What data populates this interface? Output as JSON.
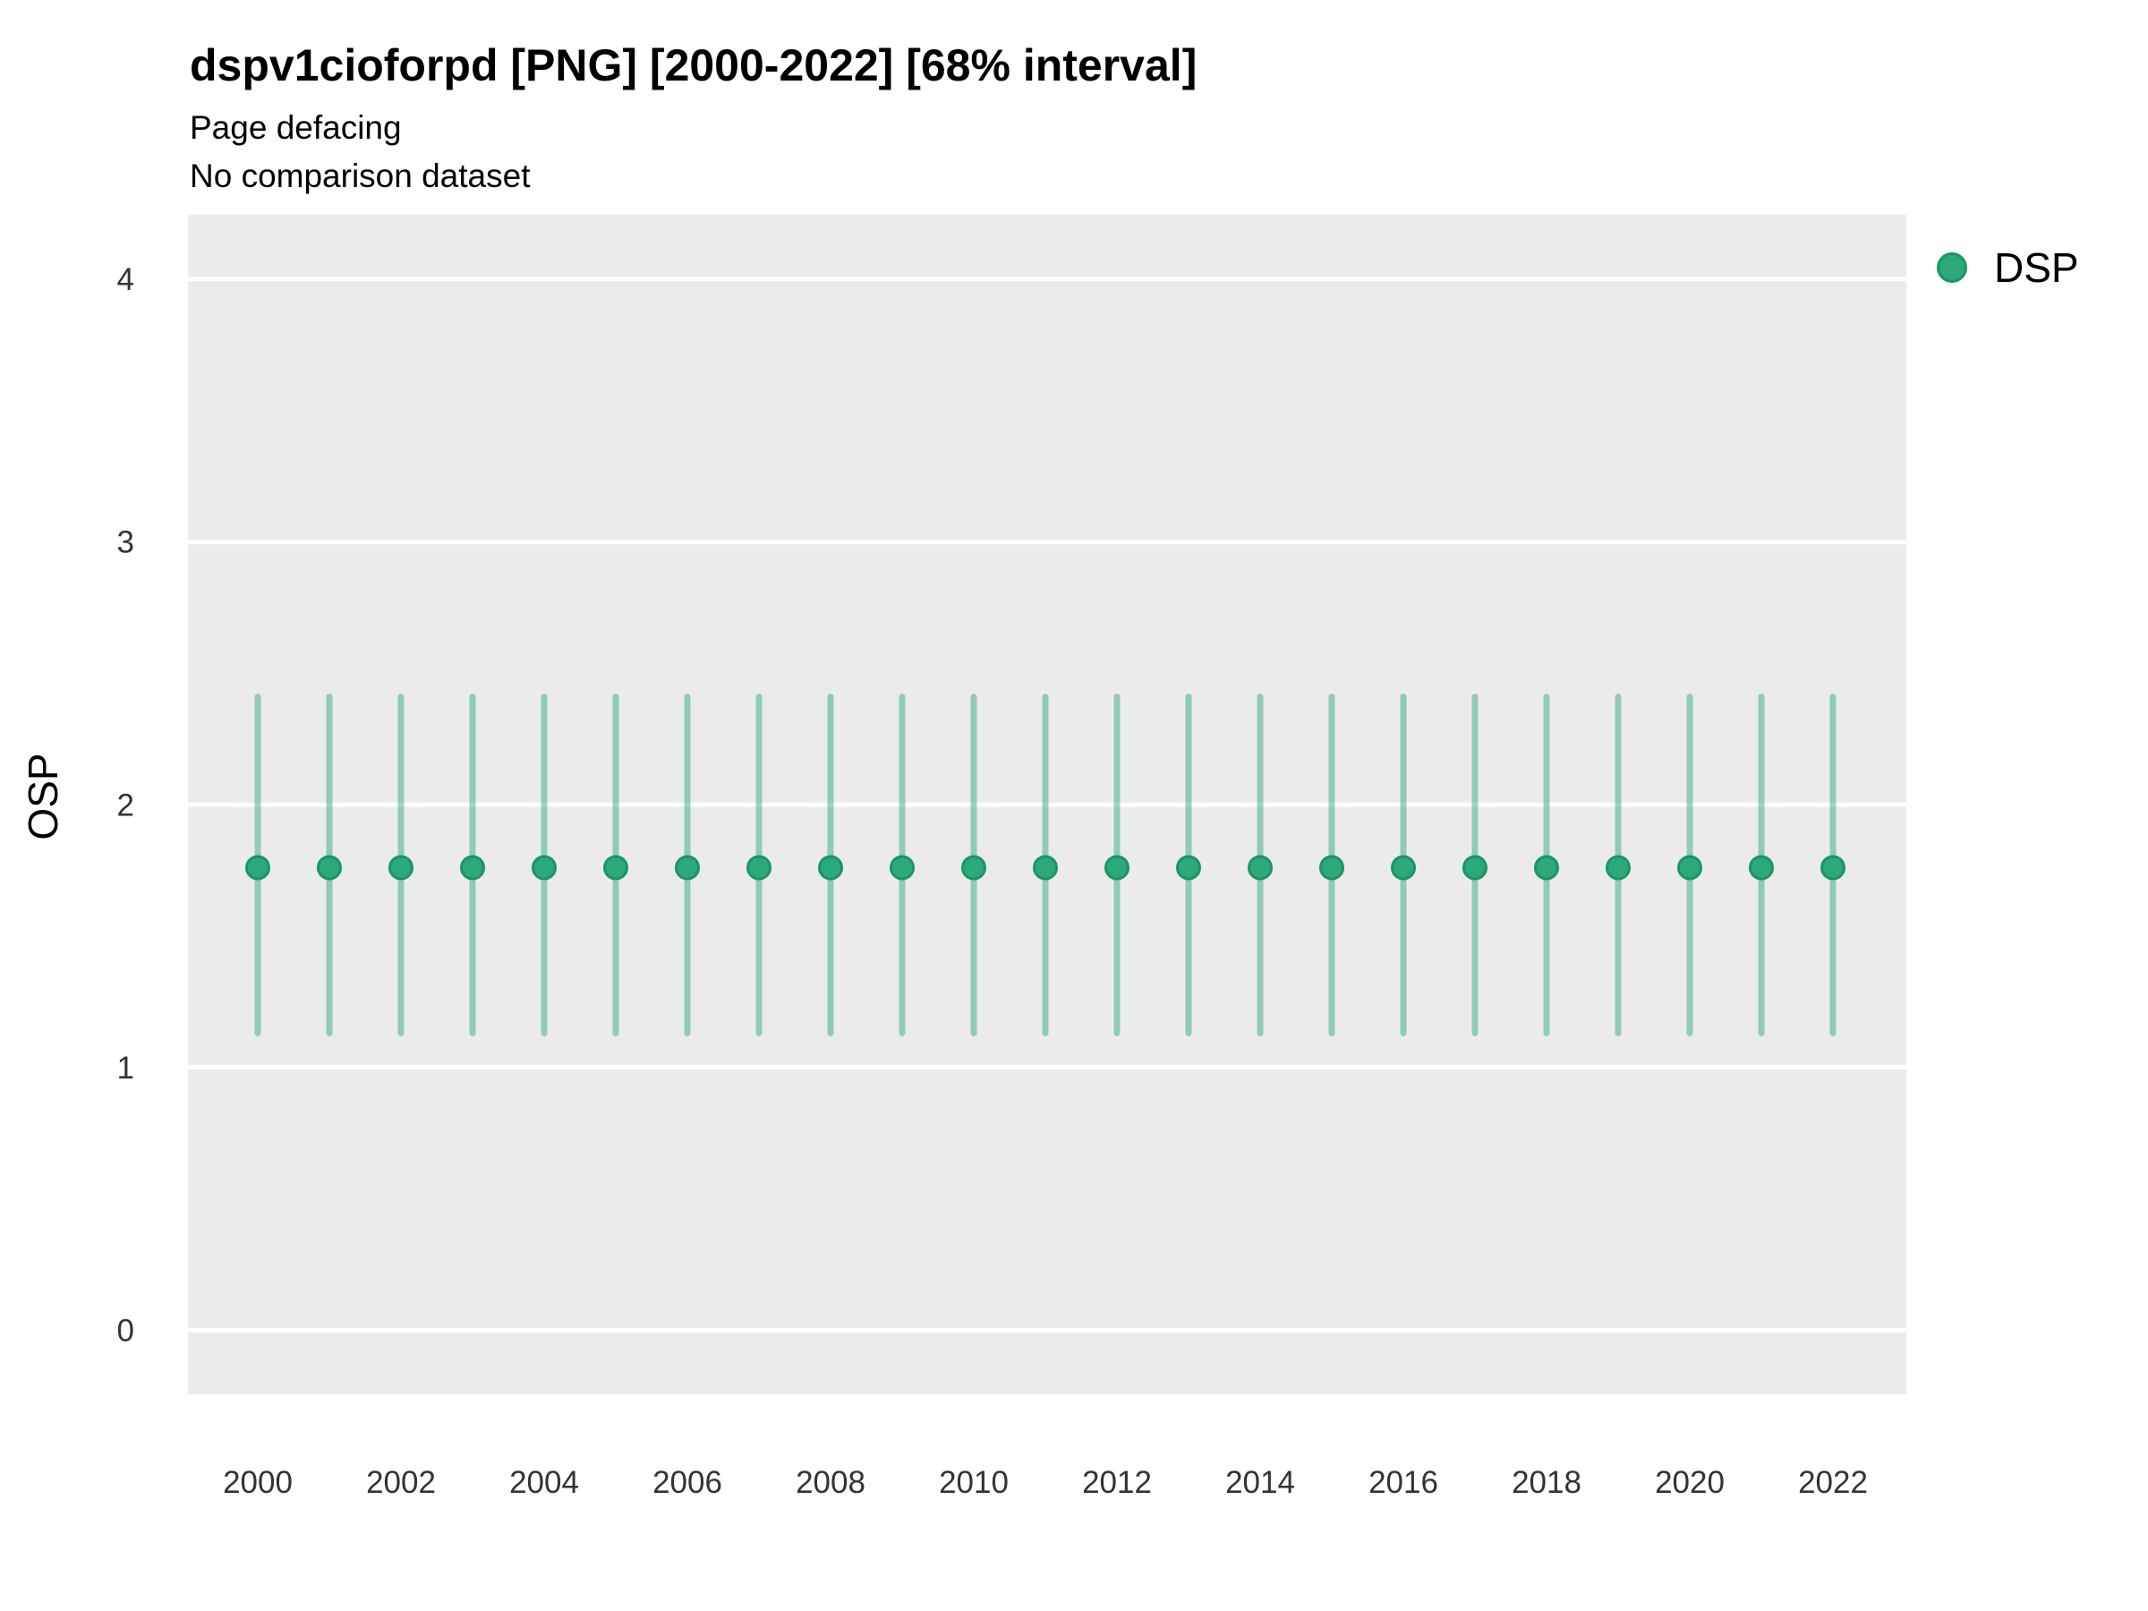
{
  "chart_data": {
    "type": "scatter",
    "variant": "pointrange-errorbar",
    "title": "dspv1cioforpd [PNG] [2000-2022] [68% interval]",
    "subtitle_lines": [
      "Page defacing",
      "No comparison dataset"
    ],
    "xlabel": "",
    "ylabel": "OSP",
    "x": [
      2000,
      2001,
      2002,
      2003,
      2004,
      2005,
      2006,
      2007,
      2008,
      2009,
      2010,
      2011,
      2012,
      2013,
      2014,
      2015,
      2016,
      2017,
      2018,
      2019,
      2020,
      2021,
      2022
    ],
    "series": [
      {
        "name": "DSP",
        "values": [
          1.76,
          1.76,
          1.76,
          1.76,
          1.76,
          1.76,
          1.76,
          1.76,
          1.76,
          1.76,
          1.76,
          1.76,
          1.76,
          1.76,
          1.76,
          1.76,
          1.76,
          1.76,
          1.76,
          1.76,
          1.76,
          1.76,
          1.76
        ],
        "lower": [
          1.13,
          1.13,
          1.13,
          1.13,
          1.13,
          1.13,
          1.13,
          1.13,
          1.13,
          1.13,
          1.13,
          1.13,
          1.13,
          1.13,
          1.13,
          1.13,
          1.13,
          1.13,
          1.13,
          1.13,
          1.13,
          1.13,
          1.13
        ],
        "upper": [
          2.41,
          2.41,
          2.41,
          2.41,
          2.41,
          2.41,
          2.41,
          2.41,
          2.41,
          2.41,
          2.41,
          2.41,
          2.41,
          2.41,
          2.41,
          2.41,
          2.41,
          2.41,
          2.41,
          2.41,
          2.41,
          2.41,
          2.41
        ]
      }
    ],
    "interval": "68%",
    "x_tick_labels": [
      "2000",
      "2002",
      "2004",
      "2006",
      "2008",
      "2010",
      "2012",
      "2014",
      "2016",
      "2018",
      "2020",
      "2022"
    ],
    "y_ticks": [
      0,
      1,
      2,
      3,
      4
    ],
    "ylim": [
      -0.245,
      4.245
    ],
    "grid": "horizontal-major-only",
    "legend": {
      "position": "top-right",
      "entries": [
        {
          "label": "DSP",
          "marker": "circle"
        }
      ]
    },
    "colors": {
      "panel_background": "#EBEBEB",
      "gridline": "#FFFFFF",
      "point_fill": "#2CA87B",
      "point_stroke": "#189668",
      "error_bar": "rgba(43,168,125,0.47)",
      "tick_text": "#333333",
      "text": "#000000"
    }
  }
}
